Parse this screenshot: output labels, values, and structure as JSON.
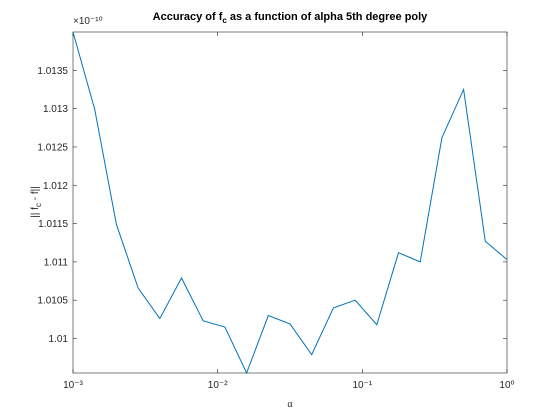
{
  "chart_data": {
    "type": "line",
    "title_parts": [
      "Accuracy of f",
      "c",
      " as a function of alpha 5th degree poly"
    ],
    "y_label_parts": [
      "|| f",
      "c",
      " - f||"
    ],
    "x_label": "α",
    "y_exponent": "×10⁻¹⁰",
    "x": [
      0.001,
      0.001413,
      0.001995,
      0.002818,
      0.003981,
      0.005623,
      0.007943,
      0.01122,
      0.01585,
      0.02239,
      0.03162,
      0.04467,
      0.0631,
      0.08913,
      0.1259,
      0.1778,
      0.2512,
      0.3548,
      0.5012,
      0.7079,
      1
    ],
    "series": [
      {
        "color": "#0072bd",
        "values": [
          1.014,
          1.01299,
          1.01149,
          1.01066,
          1.01026,
          1.01079,
          1.01023,
          1.01015,
          1.00955,
          1.0103,
          1.01019,
          1.00979,
          1.0104,
          1.0105,
          1.01018,
          1.01112,
          1.011,
          1.01262,
          1.01325,
          1.01127,
          1.01103
        ]
      }
    ],
    "xlog": true,
    "xlim": [
      0.001,
      1
    ],
    "xticks": [
      {
        "value": 0.001,
        "label": "10⁻³"
      },
      {
        "value": 0.01,
        "label": "10⁻²"
      },
      {
        "value": 0.1,
        "label": "10⁻¹"
      },
      {
        "value": 1,
        "label": "10⁰"
      }
    ],
    "ylim": [
      1.00955,
      1.014
    ],
    "yticks": [
      1.01,
      1.0105,
      1.011,
      1.0115,
      1.012,
      1.0125,
      1.013,
      1.0135
    ],
    "grid": false
  }
}
